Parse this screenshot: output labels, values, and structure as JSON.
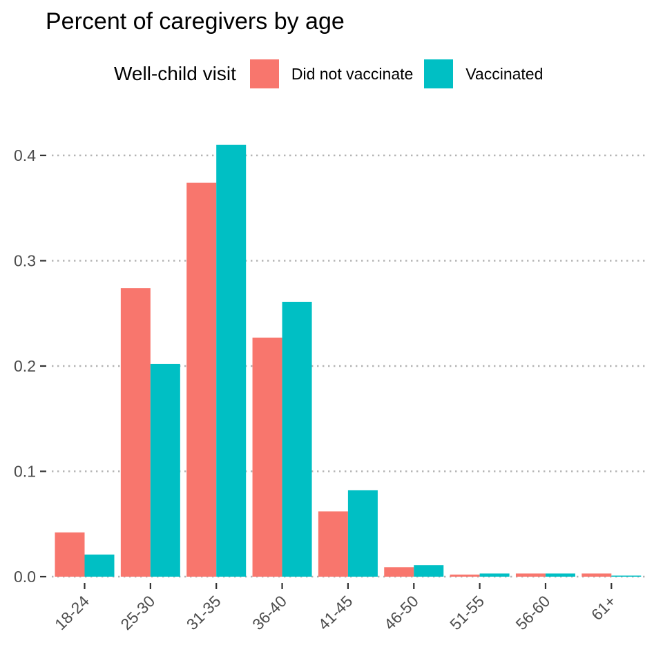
{
  "chart_data": {
    "type": "bar",
    "title": "Percent of caregivers by age",
    "legend_title": "Well-child visit",
    "legend_position": "top",
    "xlabel": "",
    "ylabel": "",
    "ylim": [
      0,
      0.42
    ],
    "yticks": [
      0.0,
      0.1,
      0.2,
      0.3,
      0.4
    ],
    "ytick_labels": [
      "0.0",
      "0.1",
      "0.2",
      "0.3",
      "0.4"
    ],
    "grid": "horizontal dotted",
    "categories": [
      "18-24",
      "25-30",
      "31-35",
      "36-40",
      "41-45",
      "46-50",
      "51-55",
      "56-60",
      "61+"
    ],
    "series": [
      {
        "name": "Did not vaccinate",
        "color": "#F8766D",
        "values": [
          0.042,
          0.274,
          0.374,
          0.227,
          0.062,
          0.009,
          0.002,
          0.003,
          0.003
        ]
      },
      {
        "name": "Vaccinated",
        "color": "#00BFC4",
        "values": [
          0.021,
          0.202,
          0.41,
          0.261,
          0.082,
          0.011,
          0.003,
          0.003,
          0.001
        ]
      }
    ]
  }
}
